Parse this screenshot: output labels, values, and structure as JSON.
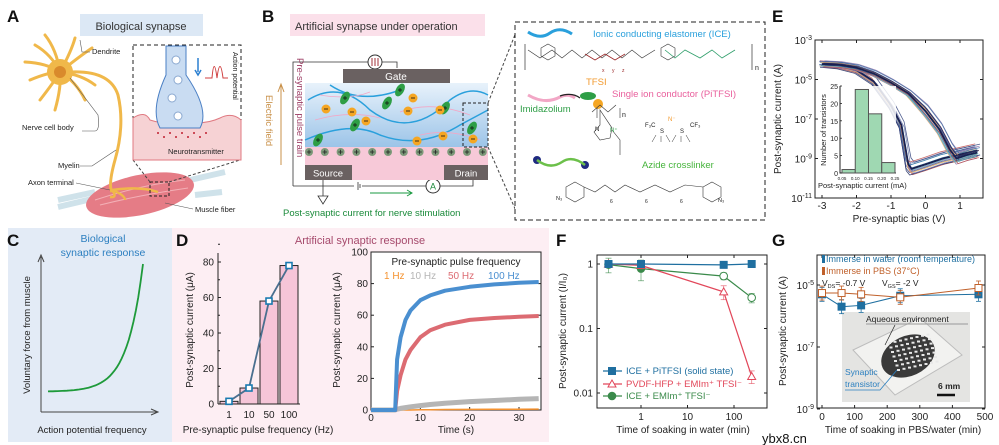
{
  "colors": {
    "panel_c_bg": "#e3ebf6",
    "panel_d_bg": "#fdeef3",
    "title_a_bg": "#dce8f5",
    "title_b_bg": "#fbe0ea",
    "ice_blue": "#2aa0dc",
    "pitfsi_pink": "#e95f9c",
    "imidazolium_green": "#2e9e46",
    "tfsi_orange": "#f29a2e",
    "crosslinker_green": "#45b33b",
    "pulse_text": "#9c3d64",
    "field_text": "#c9914a",
    "d_title": "#a64a6c",
    "c_title": "#2c7fc0"
  },
  "panels": {
    "A": {
      "letter": "A",
      "title": "Biological synapse",
      "labels": {
        "dendrite": "Dendrite",
        "cell_body": "Nerve cell body",
        "myelin": "Myelin",
        "axon_terminal": "Axon terminal",
        "muscle_fiber": "Muscle fiber",
        "neurotransmitter": "Neurotransmitter",
        "action_potential": "Action potential"
      }
    },
    "B": {
      "letter": "B",
      "title": "Artificial synapse under operation",
      "gate": "Gate",
      "source": "Source",
      "drain": "Drain",
      "pulse_train": "Pre-synaptic pulse train",
      "electric_field": "Electric field",
      "post_current": "Post-synaptic current for nerve stimulation",
      "ammeter": "A",
      "chem": {
        "ice": "Ionic conducting elastomer (ICE)",
        "tfsi": "TFSI",
        "pitfsi": "Single ion conductor (PiTFSI)",
        "imidazolium": "Imidazolium",
        "crosslinker": "Azide crosslinker",
        "atoms": {
          "f3c": "F₃C",
          "n_minus": "N⁻",
          "cf3": "CF₃",
          "s1": "S",
          "s2": "S",
          "n_plus": "N⁺",
          "n_ring": "N",
          "n3_left": "N₃",
          "n3_right": "N₃",
          "sub_n1": "n",
          "sub_n2": "n",
          "sub_x": "x",
          "sub_y": "y",
          "sub_z": "z",
          "six_a": "6",
          "six_b": "6",
          "six_c": "6"
        }
      }
    },
    "C": {
      "letter": "C"
    },
    "D": {
      "letter": "D",
      "title": "Artificial synaptic response"
    },
    "E": {
      "letter": "E"
    },
    "F": {
      "letter": "F"
    },
    "G": {
      "letter": "G",
      "photo_labels": {
        "aqueous": "Aqueous environment",
        "synaptic": "Synaptic",
        "transistor": "transistor",
        "scale": "6 mm"
      }
    }
  },
  "watermark": "ybx8.cn",
  "chart_data": [
    {
      "id": "C",
      "type": "line",
      "title": "Biological synaptic response",
      "title_lines": [
        "Biological",
        "synaptic response"
      ],
      "xlabel": "Action potential frequency",
      "ylabel": "Voluntary force from muscle",
      "shape": "exponential increase",
      "grid": false
    },
    {
      "id": "D-bar",
      "type": "bar",
      "categories": [
        "1",
        "10",
        "50",
        "100"
      ],
      "values": [
        1.5,
        9,
        58,
        78
      ],
      "overlay_line": true,
      "xlabel": "Pre-synaptic pulse frequency (Hz)",
      "ylabel": "Post-synaptic current (μA)",
      "ylim": [
        0,
        85
      ],
      "yticks": [
        "0",
        "20",
        "40",
        "60",
        "80"
      ],
      "grid": false
    },
    {
      "id": "D-line",
      "type": "line",
      "xlabel": "Time (s)",
      "ylabel": "Post-synaptic current (μA)",
      "xlim": [
        0,
        35
      ],
      "ylim": [
        0,
        100
      ],
      "xticks": [
        "0",
        "10",
        "20",
        "30"
      ],
      "yticks": [
        "0",
        "20",
        "40",
        "60",
        "80",
        "100"
      ],
      "legend_title": "Pre-synaptic pulse frequency",
      "legend_position": "top",
      "x": [
        0,
        4.9,
        5.3,
        6,
        7,
        8,
        10,
        12,
        15,
        20,
        25,
        30,
        34
      ],
      "series": [
        {
          "name": "1 Hz",
          "color": "#f5922f",
          "values": [
            0,
            0,
            0,
            0,
            0,
            0,
            0.1,
            0.2,
            0.3,
            0.4,
            0.5,
            0.5,
            0.6
          ]
        },
        {
          "name": "10 Hz",
          "color": "#b5b5b5",
          "values": [
            0,
            0,
            0.5,
            1,
            1.5,
            2,
            2.8,
            3.5,
            4.3,
            5.3,
            6,
            6.8,
            7.2
          ]
        },
        {
          "name": "50 Hz",
          "color": "#dc6b72",
          "values": [
            0,
            0,
            12,
            22,
            32,
            38,
            46,
            50.5,
            54,
            57,
            58.2,
            59,
            59.5
          ]
        },
        {
          "name": "100 Hz",
          "color": "#4a8fd0",
          "values": [
            0,
            0,
            32,
            46,
            57,
            63,
            69.5,
            72.5,
            75.5,
            78,
            79.5,
            80.5,
            81
          ]
        }
      ],
      "grid": false
    },
    {
      "id": "E",
      "type": "line",
      "xlabel": "Pre-synaptic bias (V)",
      "ylabel": "Post-synaptic current (A)",
      "xlim": [
        -3.2,
        1.6
      ],
      "ylim": [
        1e-11,
        0.001
      ],
      "yscale": "log",
      "xticks": [
        "-3",
        "-2",
        "-1",
        "0",
        "1"
      ],
      "yticks": [
        {
          "base": "10",
          "exp": "-3"
        },
        {
          "base": "10",
          "exp": "-5"
        },
        {
          "base": "10",
          "exp": "-7"
        },
        {
          "base": "10",
          "exp": "-9"
        },
        {
          "base": "10",
          "exp": "-11"
        }
      ],
      "series": [
        {
          "sweep": "reverse",
          "x": [
            -3,
            -2.5,
            -2,
            -1.5,
            -1,
            -0.7,
            -0.5,
            -0.4,
            0,
            0.5,
            1,
            1.5
          ],
          "values": [
            6e-05,
            5e-05,
            3e-05,
            8e-06,
            5e-07,
            5e-08,
            5e-10,
            3e-10,
            5e-10,
            1e-09,
            1.6e-09,
            2.5e-09
          ]
        },
        {
          "sweep": "forward",
          "x": [
            -3,
            -2.5,
            -2,
            -1.5,
            -1,
            -0.5,
            0,
            0.4,
            0.7,
            0.9,
            1.2,
            1.5
          ],
          "values": [
            6e-05,
            5.5e-05,
            4e-05,
            2e-05,
            7e-06,
            2e-06,
            2.5e-07,
            3e-08,
            3e-09,
            1e-09,
            1.5e-09,
            2e-09
          ]
        }
      ],
      "curve_colors": [
        "#1f2a5e",
        "#2f3f7a",
        "#48558f",
        "#6d7bb0",
        "#4a9ab0",
        "#6cc2c9",
        "#c0504d",
        "#f2b36b",
        "#8a6fa8",
        "#3b6ea5"
      ],
      "inset": {
        "type": "bar",
        "xlabel": "Post-synaptic current (mA)",
        "ylabel": "Number of transistors",
        "bins": [
          "0.05-0.10",
          "0.10-0.15",
          "0.15-0.20",
          "0.20-0.25"
        ],
        "values": [
          1,
          24,
          17,
          3
        ],
        "xticks": [
          "0.05",
          "0.10",
          "0.15",
          "0.20",
          "0.25"
        ],
        "yticks": [
          "0",
          "5",
          "10",
          "15",
          "20",
          "25"
        ],
        "ylim": [
          0,
          25
        ],
        "color": "#9fd8b2"
      },
      "grid": false
    },
    {
      "id": "F",
      "type": "line",
      "xlabel": "Time of soaking in water (min)",
      "ylabel": "Post-synaptic current (I/I₀)",
      "xscale": "log",
      "yscale": "log",
      "xlim": [
        0.1,
        500
      ],
      "ylim": [
        0.005,
        1.5
      ],
      "xticks": [
        "1",
        "10",
        "100"
      ],
      "yticks": [
        "1",
        "0.1",
        "0.01"
      ],
      "x": [
        0.2,
        1,
        60,
        240
      ],
      "series": [
        {
          "name": "ICE + PiTFSI (solid state)",
          "color": "#1f6fa0",
          "marker": "square",
          "values": [
            1.0,
            1.0,
            0.97,
            1.0
          ],
          "error": [
            0.12,
            0.08,
            0.03,
            0.03
          ]
        },
        {
          "name": "PVDF-HFP + EMIm⁺ TFSI⁻",
          "color": "#e2475a",
          "marker": "triangle",
          "values": [
            1.0,
            0.95,
            0.37,
            0.018
          ],
          "error": [
            0.1,
            0.1,
            0.09,
            0.004
          ]
        },
        {
          "name": "ICE + EMIm⁺ TFSI⁻",
          "color": "#3a8a4a",
          "marker": "circle",
          "values": [
            0.98,
            0.85,
            0.65,
            0.3
          ],
          "error": [
            0.25,
            0.3,
            0.08,
            0.05
          ]
        }
      ],
      "legend_position": "bottom-left",
      "grid": false
    },
    {
      "id": "G",
      "type": "line",
      "xlabel": "Time of soaking in PBS/water (min)",
      "ylabel": "Post-synaptic current (A)",
      "yscale": "log",
      "xlim": [
        -15,
        500
      ],
      "ylim": [
        1e-09,
        0.0001
      ],
      "xticks": [
        "0",
        "100",
        "200",
        "300",
        "400",
        "500"
      ],
      "yticks": [
        {
          "base": "10",
          "exp": "-5"
        },
        {
          "base": "10",
          "exp": "-7"
        },
        {
          "base": "10",
          "exp": "-9"
        }
      ],
      "x": [
        0,
        60,
        120,
        240,
        480
      ],
      "series": [
        {
          "name": "Immerse in water (room temperature)",
          "color": "#1f6fa0",
          "values": [
            5e-06,
            2e-06,
            2.2e-06,
            4.5e-06,
            5e-06
          ]
        },
        {
          "name": "Immerse in PBS (37°C)",
          "color": "#c0602a",
          "values": [
            5.5e-06,
            5.5e-06,
            5e-06,
            4e-06,
            8e-06
          ]
        }
      ],
      "conditions": [
        {
          "v": "V",
          "sub": "DS",
          "val": "= -0.7 V"
        },
        {
          "v": "V",
          "sub": "GS",
          "val": "= -2 V"
        }
      ],
      "legend_position": "top-left",
      "grid": false
    }
  ]
}
